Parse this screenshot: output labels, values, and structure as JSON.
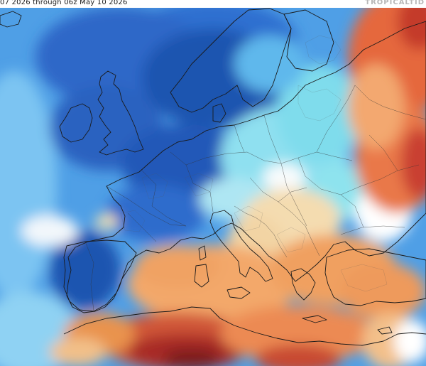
{
  "header": {
    "caption": "07 2026 through 06z May 10 2026",
    "brand": "TROPICALTID"
  },
  "map": {
    "region": "Europe",
    "colors": {
      "cold_deep": "#1c4fa8",
      "cold": "#2f6fd0",
      "cool": "#5aa8ea",
      "cool_light": "#9fd8f2",
      "cyan": "#6fe0ea",
      "neutral": "#ffffff",
      "warm_light": "#f6dca8",
      "warm": "#f3a86a",
      "hot": "#e2603a",
      "very_hot": "#b73028",
      "extreme": "#7e1c1c"
    }
  }
}
